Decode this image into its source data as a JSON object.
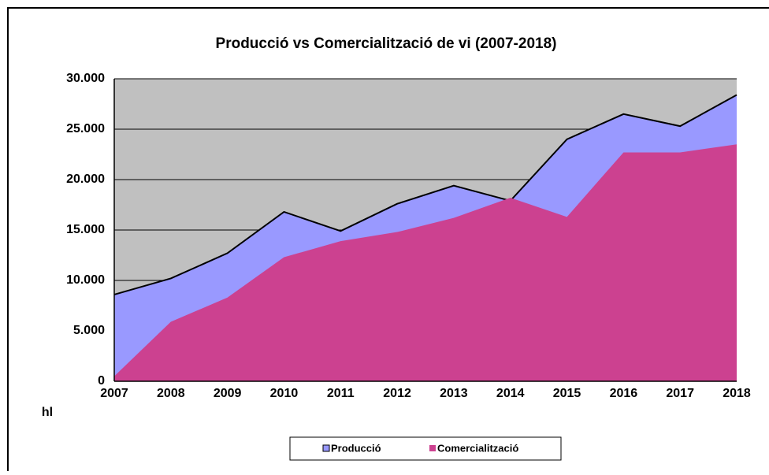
{
  "chart_data": {
    "type": "area",
    "title": "Producció vs Comercialització de vi (2007-2018)",
    "y_label": "hl",
    "x": [
      2007,
      2008,
      2009,
      2010,
      2011,
      2012,
      2013,
      2014,
      2015,
      2016,
      2017,
      2018
    ],
    "xlim": [
      2007,
      2018
    ],
    "ylim": [
      0,
      30000
    ],
    "yticks": [
      0,
      {
        "value": 5000,
        "label": "5.000"
      },
      {
        "value": 10000,
        "label": "10.000"
      },
      {
        "value": 15000,
        "label": "15.000"
      },
      {
        "value": 20000,
        "label": "20.000"
      },
      {
        "value": 25000,
        "label": "25.000"
      },
      {
        "value": 30000,
        "label": "30.000"
      }
    ],
    "grid": true,
    "legend": "bottom",
    "series": [
      {
        "name": "Producció",
        "color": "#9999ff",
        "values": [
          8600,
          10200,
          12700,
          16800,
          14900,
          17600,
          19400,
          17900,
          24000,
          26500,
          25300,
          28400
        ]
      },
      {
        "name": "Comercialització",
        "color": "#cc4190",
        "values": [
          500,
          5900,
          8300,
          12300,
          13900,
          14800,
          16200,
          18200,
          16300,
          22700,
          22700,
          23500
        ]
      }
    ]
  }
}
